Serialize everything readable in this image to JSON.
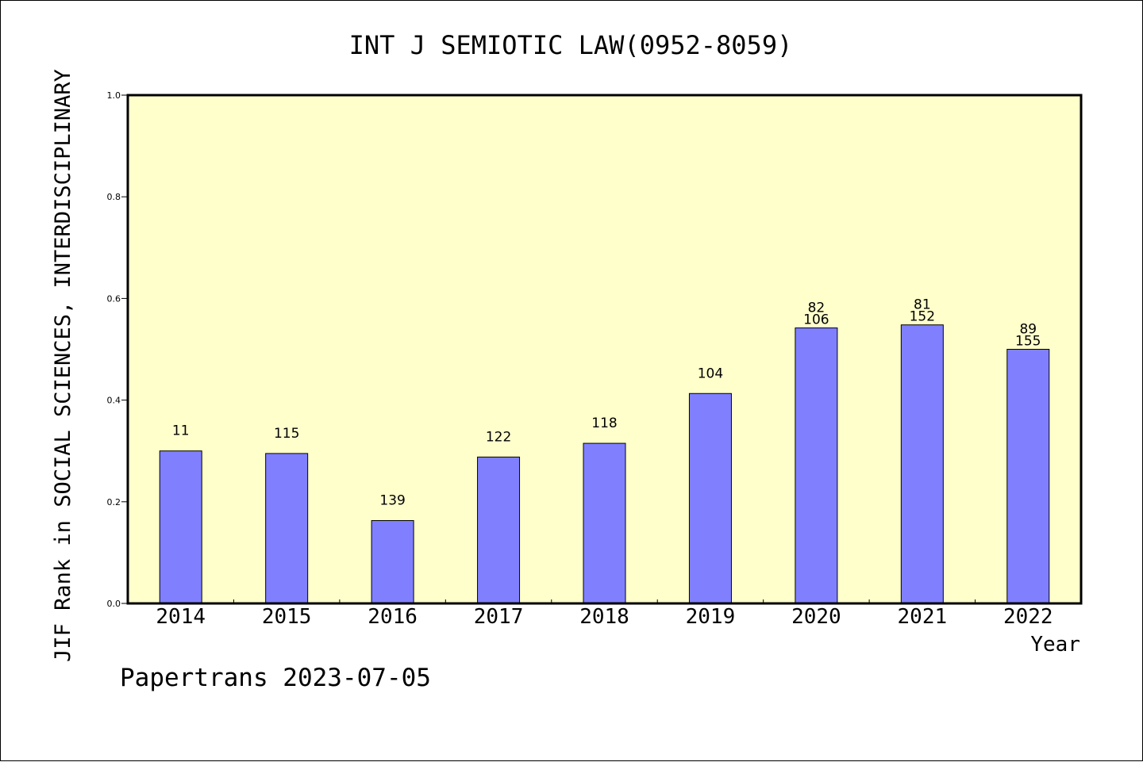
{
  "chart_data": {
    "type": "bar",
    "title": "INT J SEMIOTIC LAW(0952-8059)",
    "xlabel": "Year",
    "ylabel": "JIF Rank in SOCIAL SCIENCES, INTERDISCIPLINARY",
    "ylim": [
      0,
      1.0
    ],
    "yticks": [
      "0.0",
      "0.2",
      "0.4",
      "0.6",
      "0.8",
      "1.0"
    ],
    "categories": [
      "2014",
      "2015",
      "2016",
      "2017",
      "2018",
      "2019",
      "2020",
      "2021",
      "2022"
    ],
    "values": [
      0.3,
      0.295,
      0.163,
      0.288,
      0.315,
      0.413,
      0.542,
      0.548,
      0.5
    ],
    "data_labels": [
      [
        "11"
      ],
      [
        "115"
      ],
      [
        "139"
      ],
      [
        "122"
      ],
      [
        "118"
      ],
      [
        "104"
      ],
      [
        "82",
        "106"
      ],
      [
        "81",
        "152"
      ],
      [
        "89",
        "155"
      ]
    ],
    "bar_color": "#8080ff",
    "plot_background": "#ffffcc",
    "grid": false,
    "footer": "Papertrans 2023-07-05"
  }
}
